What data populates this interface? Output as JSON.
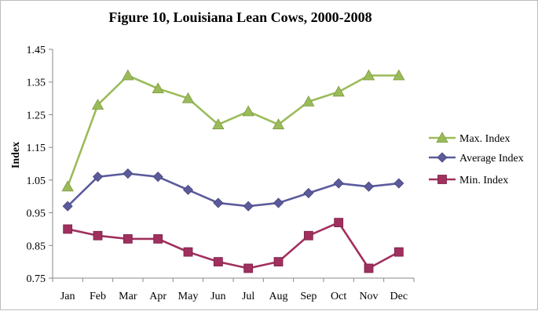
{
  "chart_data": {
    "type": "line",
    "title": "Figure 10, Louisiana Lean Cows, 2000-2008",
    "xlabel": "",
    "ylabel": "Index",
    "categories": [
      "Jan",
      "Feb",
      "Mar",
      "Apr",
      "May",
      "Jun",
      "Jul",
      "Aug",
      "Sep",
      "Oct",
      "Nov",
      "Dec"
    ],
    "ylim": [
      0.75,
      1.45
    ],
    "yticks": [
      "0.75",
      "0.85",
      "0.95",
      "1.05",
      "1.15",
      "1.25",
      "1.35",
      "1.45"
    ],
    "grid": false,
    "legend_position": "right",
    "series": [
      {
        "name": "Max. Index",
        "color": "#9BBB59",
        "marker": "triangle",
        "values": [
          1.03,
          1.28,
          1.37,
          1.33,
          1.3,
          1.22,
          1.26,
          1.22,
          1.29,
          1.32,
          1.37,
          1.37
        ]
      },
      {
        "name": "Average Index",
        "color": "#5B5B9C",
        "marker": "diamond",
        "values": [
          0.97,
          1.06,
          1.07,
          1.06,
          1.02,
          0.98,
          0.97,
          0.98,
          1.01,
          1.04,
          1.03,
          1.04
        ]
      },
      {
        "name": "Min. Index",
        "color": "#A0305E",
        "marker": "square",
        "values": [
          0.9,
          0.88,
          0.87,
          0.87,
          0.83,
          0.8,
          0.78,
          0.8,
          0.88,
          0.92,
          0.78,
          0.83
        ]
      }
    ]
  }
}
